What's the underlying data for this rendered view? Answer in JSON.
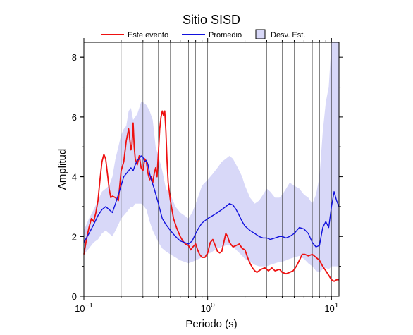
{
  "chart_data": {
    "type": "line",
    "title": "Sitio SISD",
    "xlabel": "Periodo (s)",
    "ylabel": "Amplitud",
    "xscale": "log",
    "xlim": [
      0.1,
      11.5
    ],
    "ylim": [
      0,
      8.5
    ],
    "grid": "vertical log grid",
    "legend_position": "top",
    "x_ticks": [
      {
        "value": 0.1,
        "base": "10",
        "exp": "−1"
      },
      {
        "value": 1,
        "base": "10",
        "exp": "0"
      },
      {
        "value": 10,
        "base": "10",
        "exp": "1"
      }
    ],
    "y_ticks": [
      {
        "value": 0,
        "label": "0"
      },
      {
        "value": 2,
        "label": "2"
      },
      {
        "value": 4,
        "label": "4"
      },
      {
        "value": 6,
        "label": "6"
      },
      {
        "value": 8,
        "label": "8"
      }
    ],
    "legend": [
      {
        "label": "Este evento",
        "kind": "line",
        "color": "#ee1111"
      },
      {
        "label": "Promedio",
        "kind": "line",
        "color": "#1111dd"
      },
      {
        "label": "Desv. Est.",
        "kind": "patch",
        "color": "#d8d8f8"
      }
    ],
    "series": [
      {
        "name": "Este evento",
        "color": "#ee1111",
        "points": [
          [
            0.1,
            1.4
          ],
          [
            0.105,
            1.9
          ],
          [
            0.11,
            2.3
          ],
          [
            0.115,
            2.6
          ],
          [
            0.12,
            2.5
          ],
          [
            0.125,
            2.8
          ],
          [
            0.13,
            3.2
          ],
          [
            0.135,
            3.9
          ],
          [
            0.14,
            4.5
          ],
          [
            0.145,
            4.75
          ],
          [
            0.15,
            4.6
          ],
          [
            0.155,
            4.1
          ],
          [
            0.16,
            3.6
          ],
          [
            0.165,
            3.3
          ],
          [
            0.17,
            3.35
          ],
          [
            0.18,
            3.3
          ],
          [
            0.19,
            3.2
          ],
          [
            0.2,
            4.2
          ],
          [
            0.21,
            4.5
          ],
          [
            0.22,
            5.2
          ],
          [
            0.23,
            5.6
          ],
          [
            0.24,
            4.9
          ],
          [
            0.245,
            5.1
          ],
          [
            0.25,
            5.8
          ],
          [
            0.255,
            5.0
          ],
          [
            0.26,
            4.6
          ],
          [
            0.27,
            4.4
          ],
          [
            0.28,
            4.7
          ],
          [
            0.29,
            4.3
          ],
          [
            0.3,
            4.2
          ],
          [
            0.31,
            4.6
          ],
          [
            0.32,
            4.5
          ],
          [
            0.33,
            4.1
          ],
          [
            0.34,
            3.9
          ],
          [
            0.35,
            4.0
          ],
          [
            0.36,
            3.8
          ],
          [
            0.37,
            4.1
          ],
          [
            0.38,
            4.3
          ],
          [
            0.39,
            4.0
          ],
          [
            0.4,
            4.8
          ],
          [
            0.41,
            5.6
          ],
          [
            0.42,
            6.0
          ],
          [
            0.43,
            6.2
          ],
          [
            0.44,
            6.05
          ],
          [
            0.45,
            6.2
          ],
          [
            0.46,
            5.5
          ],
          [
            0.47,
            4.5
          ],
          [
            0.48,
            3.8
          ],
          [
            0.5,
            3.2
          ],
          [
            0.53,
            2.6
          ],
          [
            0.56,
            2.3
          ],
          [
            0.6,
            2.0
          ],
          [
            0.63,
            1.85
          ],
          [
            0.66,
            1.75
          ],
          [
            0.7,
            1.7
          ],
          [
            0.73,
            1.55
          ],
          [
            0.76,
            1.65
          ],
          [
            0.8,
            1.75
          ],
          [
            0.83,
            1.55
          ],
          [
            0.86,
            1.4
          ],
          [
            0.9,
            1.3
          ],
          [
            0.95,
            1.3
          ],
          [
            1.0,
            1.45
          ],
          [
            1.05,
            1.8
          ],
          [
            1.1,
            1.9
          ],
          [
            1.15,
            1.7
          ],
          [
            1.2,
            1.5
          ],
          [
            1.25,
            1.45
          ],
          [
            1.3,
            1.5
          ],
          [
            1.35,
            1.8
          ],
          [
            1.4,
            2.1
          ],
          [
            1.45,
            2.0
          ],
          [
            1.5,
            1.8
          ],
          [
            1.6,
            1.65
          ],
          [
            1.7,
            1.7
          ],
          [
            1.8,
            1.75
          ],
          [
            1.9,
            1.6
          ],
          [
            2.0,
            1.55
          ],
          [
            2.1,
            1.3
          ],
          [
            2.2,
            1.1
          ],
          [
            2.3,
            0.95
          ],
          [
            2.4,
            0.85
          ],
          [
            2.5,
            0.8
          ],
          [
            2.7,
            0.9
          ],
          [
            2.9,
            0.95
          ],
          [
            3.1,
            0.85
          ],
          [
            3.3,
            0.95
          ],
          [
            3.5,
            0.85
          ],
          [
            3.8,
            0.9
          ],
          [
            4.0,
            0.8
          ],
          [
            4.3,
            0.75
          ],
          [
            4.6,
            0.8
          ],
          [
            4.9,
            0.85
          ],
          [
            5.2,
            1.0
          ],
          [
            5.5,
            1.2
          ],
          [
            5.8,
            1.4
          ],
          [
            6.1,
            1.4
          ],
          [
            6.5,
            1.35
          ],
          [
            7.0,
            1.4
          ],
          [
            7.5,
            1.3
          ],
          [
            8.0,
            1.2
          ],
          [
            8.5,
            1.0
          ],
          [
            9.0,
            0.85
          ],
          [
            9.5,
            0.7
          ],
          [
            10.0,
            0.55
          ],
          [
            10.5,
            0.5
          ],
          [
            11.0,
            0.55
          ],
          [
            11.5,
            0.55
          ]
        ]
      },
      {
        "name": "Promedio",
        "color": "#1111dd",
        "points": [
          [
            0.1,
            1.8
          ],
          [
            0.11,
            2.1
          ],
          [
            0.12,
            2.4
          ],
          [
            0.13,
            2.7
          ],
          [
            0.14,
            2.9
          ],
          [
            0.15,
            3.0
          ],
          [
            0.16,
            2.9
          ],
          [
            0.17,
            2.8
          ],
          [
            0.18,
            3.1
          ],
          [
            0.19,
            3.4
          ],
          [
            0.2,
            3.7
          ],
          [
            0.21,
            4.0
          ],
          [
            0.22,
            4.1
          ],
          [
            0.23,
            4.2
          ],
          [
            0.24,
            4.3
          ],
          [
            0.25,
            4.2
          ],
          [
            0.26,
            4.4
          ],
          [
            0.27,
            4.55
          ],
          [
            0.28,
            4.6
          ],
          [
            0.29,
            4.7
          ],
          [
            0.3,
            4.65
          ],
          [
            0.31,
            4.5
          ],
          [
            0.32,
            4.55
          ],
          [
            0.33,
            4.4
          ],
          [
            0.34,
            4.1
          ],
          [
            0.35,
            3.9
          ],
          [
            0.37,
            3.6
          ],
          [
            0.4,
            3.1
          ],
          [
            0.43,
            2.6
          ],
          [
            0.46,
            2.4
          ],
          [
            0.5,
            2.2
          ],
          [
            0.55,
            2.0
          ],
          [
            0.6,
            1.85
          ],
          [
            0.65,
            1.8
          ],
          [
            0.7,
            1.75
          ],
          [
            0.75,
            1.85
          ],
          [
            0.8,
            2.1
          ],
          [
            0.85,
            2.3
          ],
          [
            0.9,
            2.45
          ],
          [
            1.0,
            2.6
          ],
          [
            1.1,
            2.7
          ],
          [
            1.2,
            2.8
          ],
          [
            1.3,
            2.9
          ],
          [
            1.4,
            3.0
          ],
          [
            1.5,
            3.1
          ],
          [
            1.6,
            3.05
          ],
          [
            1.7,
            2.9
          ],
          [
            1.8,
            2.7
          ],
          [
            1.9,
            2.5
          ],
          [
            2.0,
            2.35
          ],
          [
            2.2,
            2.2
          ],
          [
            2.4,
            2.1
          ],
          [
            2.6,
            2.0
          ],
          [
            2.8,
            1.95
          ],
          [
            3.0,
            1.95
          ],
          [
            3.2,
            1.9
          ],
          [
            3.5,
            1.95
          ],
          [
            3.8,
            2.0
          ],
          [
            4.0,
            2.0
          ],
          [
            4.3,
            1.95
          ],
          [
            4.6,
            2.0
          ],
          [
            5.0,
            2.1
          ],
          [
            5.5,
            2.3
          ],
          [
            6.0,
            2.25
          ],
          [
            6.5,
            2.1
          ],
          [
            7.0,
            1.8
          ],
          [
            7.5,
            1.65
          ],
          [
            8.0,
            1.7
          ],
          [
            8.5,
            2.3
          ],
          [
            9.0,
            2.5
          ],
          [
            9.5,
            2.3
          ],
          [
            10.0,
            3.0
          ],
          [
            10.5,
            3.5
          ],
          [
            11.0,
            3.2
          ],
          [
            11.5,
            3.0
          ]
        ]
      }
    ],
    "band": {
      "name": "Desv. Est.",
      "color": "#d8d8f8",
      "upper": [
        [
          0.1,
          2.2
        ],
        [
          0.11,
          2.6
        ],
        [
          0.12,
          2.9
        ],
        [
          0.13,
          3.2
        ],
        [
          0.14,
          3.5
        ],
        [
          0.15,
          3.6
        ],
        [
          0.16,
          3.7
        ],
        [
          0.17,
          4.0
        ],
        [
          0.18,
          4.6
        ],
        [
          0.19,
          5.0
        ],
        [
          0.2,
          5.4
        ],
        [
          0.21,
          5.6
        ],
        [
          0.22,
          5.7
        ],
        [
          0.23,
          6.2
        ],
        [
          0.24,
          6.3
        ],
        [
          0.25,
          5.9
        ],
        [
          0.26,
          6.0
        ],
        [
          0.27,
          6.1
        ],
        [
          0.28,
          6.3
        ],
        [
          0.29,
          6.5
        ],
        [
          0.3,
          6.5
        ],
        [
          0.32,
          6.4
        ],
        [
          0.34,
          6.2
        ],
        [
          0.36,
          5.9
        ],
        [
          0.38,
          5.0
        ],
        [
          0.4,
          4.7
        ],
        [
          0.43,
          4.2
        ],
        [
          0.46,
          3.6
        ],
        [
          0.5,
          3.4
        ],
        [
          0.55,
          3.0
        ],
        [
          0.6,
          2.8
        ],
        [
          0.65,
          2.7
        ],
        [
          0.7,
          2.6
        ],
        [
          0.75,
          2.8
        ],
        [
          0.8,
          3.1
        ],
        [
          0.85,
          3.4
        ],
        [
          0.9,
          3.7
        ],
        [
          1.0,
          3.9
        ],
        [
          1.1,
          4.1
        ],
        [
          1.2,
          4.3
        ],
        [
          1.3,
          4.5
        ],
        [
          1.4,
          4.6
        ],
        [
          1.5,
          4.7
        ],
        [
          1.6,
          4.6
        ],
        [
          1.7,
          4.4
        ],
        [
          1.8,
          4.2
        ],
        [
          1.9,
          4.0
        ],
        [
          2.0,
          3.7
        ],
        [
          2.2,
          3.3
        ],
        [
          2.4,
          3.1
        ],
        [
          2.6,
          3.2
        ],
        [
          2.8,
          3.4
        ],
        [
          3.0,
          3.6
        ],
        [
          3.2,
          3.5
        ],
        [
          3.5,
          3.3
        ],
        [
          3.8,
          3.3
        ],
        [
          4.0,
          3.4
        ],
        [
          4.3,
          3.6
        ],
        [
          4.6,
          3.8
        ],
        [
          5.0,
          3.7
        ],
        [
          5.5,
          3.6
        ],
        [
          6.0,
          3.4
        ],
        [
          6.5,
          3.3
        ],
        [
          7.0,
          3.1
        ],
        [
          7.5,
          3.4
        ],
        [
          8.0,
          4.0
        ],
        [
          8.5,
          5.5
        ],
        [
          9.0,
          6.5
        ],
        [
          9.5,
          7.0
        ],
        [
          10.0,
          8.5
        ],
        [
          11.5,
          8.5
        ]
      ],
      "lower": [
        [
          0.1,
          1.4
        ],
        [
          0.11,
          1.6
        ],
        [
          0.12,
          1.8
        ],
        [
          0.13,
          1.9
        ],
        [
          0.14,
          2.1
        ],
        [
          0.15,
          2.2
        ],
        [
          0.16,
          2.1
        ],
        [
          0.17,
          2.0
        ],
        [
          0.18,
          2.2
        ],
        [
          0.19,
          2.4
        ],
        [
          0.2,
          2.6
        ],
        [
          0.21,
          2.7
        ],
        [
          0.22,
          2.8
        ],
        [
          0.23,
          2.9
        ],
        [
          0.24,
          3.0
        ],
        [
          0.25,
          3.0
        ],
        [
          0.26,
          3.1
        ],
        [
          0.27,
          3.1
        ],
        [
          0.28,
          3.1
        ],
        [
          0.29,
          3.1
        ],
        [
          0.3,
          3.05
        ],
        [
          0.32,
          2.9
        ],
        [
          0.34,
          2.5
        ],
        [
          0.36,
          2.2
        ],
        [
          0.38,
          2.0
        ],
        [
          0.4,
          1.8
        ],
        [
          0.43,
          1.6
        ],
        [
          0.46,
          1.5
        ],
        [
          0.5,
          1.4
        ],
        [
          0.55,
          1.3
        ],
        [
          0.6,
          1.2
        ],
        [
          0.65,
          1.15
        ],
        [
          0.7,
          1.1
        ],
        [
          0.75,
          1.15
        ],
        [
          0.8,
          1.2
        ],
        [
          0.85,
          1.25
        ],
        [
          0.9,
          1.3
        ],
        [
          1.0,
          1.4
        ],
        [
          1.1,
          1.5
        ],
        [
          1.2,
          1.6
        ],
        [
          1.3,
          1.65
        ],
        [
          1.4,
          1.7
        ],
        [
          1.5,
          1.7
        ],
        [
          1.6,
          1.65
        ],
        [
          1.7,
          1.55
        ],
        [
          1.8,
          1.45
        ],
        [
          1.9,
          1.35
        ],
        [
          2.0,
          1.25
        ],
        [
          2.2,
          1.15
        ],
        [
          2.4,
          1.05
        ],
        [
          2.6,
          1.0
        ],
        [
          2.8,
          1.0
        ],
        [
          3.0,
          1.0
        ],
        [
          3.2,
          1.05
        ],
        [
          3.5,
          1.1
        ],
        [
          3.8,
          1.15
        ],
        [
          4.0,
          1.15
        ],
        [
          4.3,
          1.2
        ],
        [
          4.6,
          1.25
        ],
        [
          5.0,
          1.3
        ],
        [
          5.5,
          1.35
        ],
        [
          6.0,
          1.25
        ],
        [
          6.5,
          1.1
        ],
        [
          7.0,
          1.0
        ],
        [
          7.5,
          0.85
        ],
        [
          8.0,
          0.8
        ],
        [
          8.5,
          0.9
        ],
        [
          9.0,
          0.95
        ],
        [
          9.5,
          0.9
        ],
        [
          10.0,
          1.0
        ],
        [
          11.0,
          1.0
        ],
        [
          11.5,
          1.0
        ]
      ]
    }
  }
}
